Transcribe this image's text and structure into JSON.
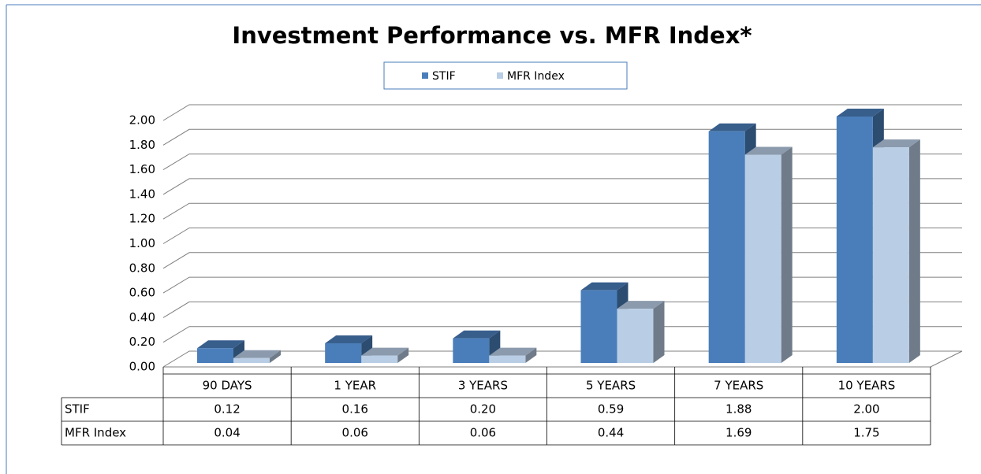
{
  "chart_data": {
    "type": "bar",
    "title": "Investment Performance vs. MFR Index*",
    "categories": [
      "90 DAYS",
      "1 YEAR",
      "3 YEARS",
      "5 YEARS",
      "7 YEARS",
      "10 YEARS"
    ],
    "series": [
      {
        "name": "STIF",
        "color": "#4a7ebb",
        "values": [
          0.12,
          0.16,
          0.2,
          0.59,
          1.88,
          2.0
        ],
        "value_labels": [
          "0.12",
          "0.16",
          "0.20",
          "0.59",
          "1.88",
          "2.00"
        ]
      },
      {
        "name": "MFR Index",
        "color": "#b9cde5",
        "values": [
          0.04,
          0.06,
          0.06,
          0.44,
          1.69,
          1.75
        ],
        "value_labels": [
          "0.04",
          "0.06",
          "0.06",
          "0.44",
          "1.69",
          "1.75"
        ]
      }
    ],
    "ylim": [
      0,
      2
    ],
    "yticks": [
      {
        "value": 0,
        "label": "0.00"
      },
      {
        "value": 0.2,
        "label": "0.20"
      },
      {
        "value": 0.4,
        "label": "0.40"
      },
      {
        "value": 0.6,
        "label": "0.60"
      },
      {
        "value": 0.8,
        "label": "0.80"
      },
      {
        "value": 1,
        "label": "1.00"
      },
      {
        "value": 1.2,
        "label": "1.20"
      },
      {
        "value": 1.4,
        "label": "1.40"
      },
      {
        "value": 1.6,
        "label": "1.60"
      },
      {
        "value": 1.8,
        "label": "1.80"
      },
      {
        "value": 2,
        "label": "2.00"
      }
    ],
    "grid": true,
    "legend": "top"
  }
}
